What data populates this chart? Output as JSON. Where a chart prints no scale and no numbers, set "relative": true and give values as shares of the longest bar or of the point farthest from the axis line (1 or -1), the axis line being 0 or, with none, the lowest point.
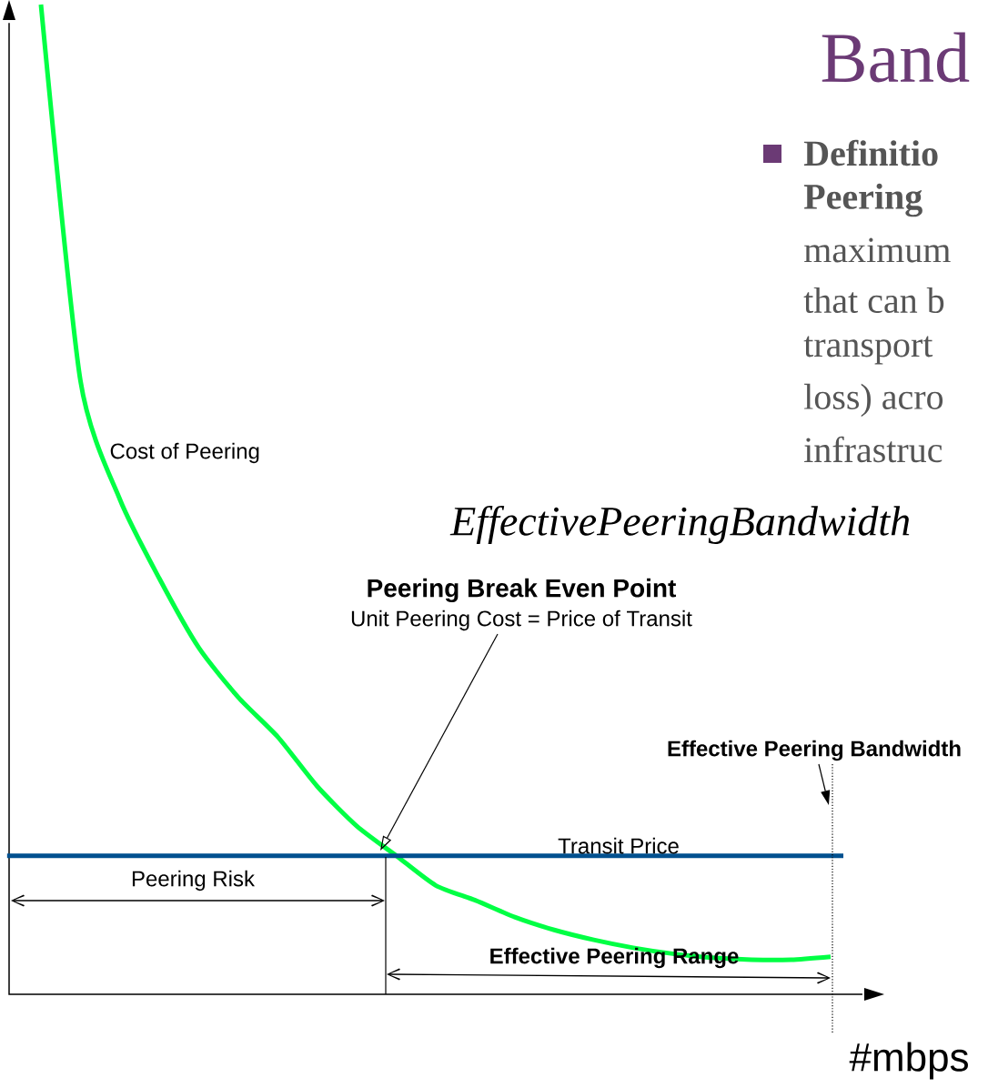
{
  "chart_data": {
    "type": "line",
    "title": "Band",
    "xlabel": "#mbps",
    "relative": true,
    "categories": [
      null,
      null,
      null,
      null,
      null,
      null,
      null,
      null,
      null,
      null,
      null,
      null,
      null,
      null,
      null,
      null,
      null,
      null,
      null,
      null,
      null
    ],
    "series": [
      {
        "name": "Cost of Peering",
        "color": "#00ff44",
        "values": [
          1.0,
          0.62,
          0.5,
          0.42,
          0.35,
          0.3,
          0.26,
          0.21,
          0.17,
          0.14,
          0.11,
          0.095,
          0.078,
          0.065,
          0.055,
          0.047,
          0.041,
          0.037,
          0.035,
          0.035,
          0.038
        ]
      }
    ],
    "ref_lines": [
      {
        "axis": "y",
        "value": 0.14,
        "label": "Transit Price",
        "color": "#00508f"
      }
    ],
    "annotations": [
      "Peering Break Even Point",
      "Unit Peering Cost = Price of Transit",
      "Effective Peering Bandwidth",
      "Peering Risk",
      "Effective Peering Range",
      "EffectivePeeringBandwidth",
      "Definitio",
      "Peering",
      "maximum",
      "that can b",
      "transport",
      "loss) acro",
      "infrastruc"
    ]
  }
}
